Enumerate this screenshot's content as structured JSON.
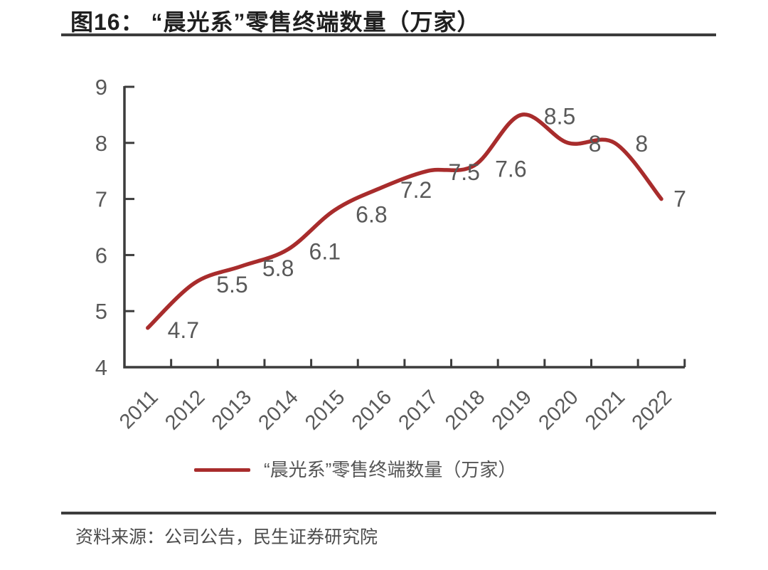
{
  "figure_header": {
    "title": "图16： “晨光系”零售终端数量（万家）"
  },
  "chart_data": {
    "type": "line",
    "title": "图16： “晨光系”零售终端数量（万家）",
    "categories": [
      "2011",
      "2012",
      "2013",
      "2014",
      "2015",
      "2016",
      "2017",
      "2018",
      "2019",
      "2020",
      "2021",
      "2022"
    ],
    "series": [
      {
        "name": "“晨光系”零售终端数量（万家）",
        "values": [
          4.7,
          5.5,
          5.8,
          6.1,
          6.8,
          7.2,
          7.5,
          7.6,
          8.5,
          8,
          8,
          7
        ],
        "point_labels": [
          "4.7",
          "5.5",
          "5.8",
          "6.1",
          "6.8",
          "7.2",
          "7.5",
          "7.6",
          "8.5",
          "8",
          "8",
          "7"
        ],
        "color": "#a82c2c"
      }
    ],
    "xlabel": "",
    "ylabel": "",
    "ylim": [
      4,
      9
    ],
    "yticks": [
      4,
      5,
      6,
      7,
      8,
      9
    ],
    "grid": false,
    "line_smooth": true,
    "legend_position": "bottom-center",
    "axis_color": "#3c3c3c",
    "tick_label_color": "#595959",
    "data_label_color": "#595959"
  },
  "legend": {
    "label": "“晨光系”零售终端数量（万家）",
    "swatch_color": "#a82c2c"
  },
  "footer": {
    "source": "资料来源：公司公告，民生证券研究院"
  }
}
